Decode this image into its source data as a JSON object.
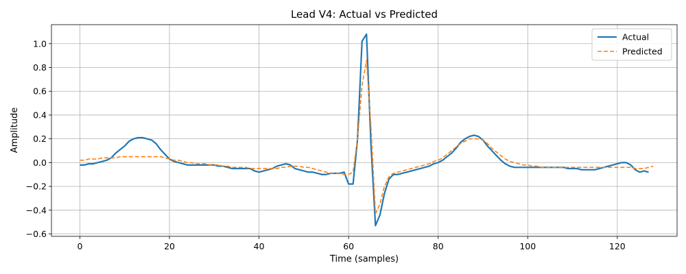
{
  "chart_data": {
    "type": "line",
    "title": "Lead V4: Actual vs Predicted",
    "xlabel": "Time (samples)",
    "ylabel": "Amplitude",
    "xlim": [
      -6.35,
      133.35
    ],
    "ylim": [
      -0.62,
      1.16
    ],
    "xticks": [
      0,
      20,
      40,
      60,
      80,
      100,
      120
    ],
    "yticks": [
      -0.6,
      -0.4,
      -0.2,
      0.0,
      0.2,
      0.4,
      0.6,
      0.8,
      1.0
    ],
    "xtick_labels": [
      "0",
      "20",
      "40",
      "60",
      "80",
      "100",
      "120"
    ],
    "ytick_labels": [
      "−0.6",
      "−0.4",
      "−0.2",
      "0.0",
      "0.2",
      "0.4",
      "0.6",
      "0.8",
      "1.0"
    ],
    "grid": true,
    "legend_position": "top-right",
    "series": [
      {
        "name": "Actual",
        "color": "#1f77b4",
        "style": "solid",
        "y": [
          -0.02,
          -0.02,
          -0.01,
          -0.01,
          0.0,
          0.01,
          0.02,
          0.04,
          0.08,
          0.11,
          0.14,
          0.18,
          0.2,
          0.21,
          0.21,
          0.2,
          0.19,
          0.16,
          0.11,
          0.07,
          0.03,
          0.01,
          0.0,
          -0.01,
          -0.02,
          -0.02,
          -0.02,
          -0.02,
          -0.02,
          -0.02,
          -0.02,
          -0.03,
          -0.03,
          -0.04,
          -0.05,
          -0.05,
          -0.05,
          -0.05,
          -0.05,
          -0.07,
          -0.08,
          -0.07,
          -0.06,
          -0.05,
          -0.03,
          -0.02,
          -0.01,
          -0.02,
          -0.05,
          -0.06,
          -0.07,
          -0.08,
          -0.08,
          -0.09,
          -0.1,
          -0.1,
          -0.09,
          -0.09,
          -0.09,
          -0.08,
          -0.18,
          -0.18,
          0.2,
          1.02,
          1.08,
          0.15,
          -0.53,
          -0.44,
          -0.26,
          -0.14,
          -0.1,
          -0.1,
          -0.09,
          -0.08,
          -0.07,
          -0.06,
          -0.05,
          -0.04,
          -0.03,
          -0.01,
          0.0,
          0.02,
          0.05,
          0.08,
          0.12,
          0.17,
          0.2,
          0.22,
          0.23,
          0.22,
          0.19,
          0.14,
          0.1,
          0.06,
          0.02,
          -0.01,
          -0.03,
          -0.04,
          -0.04,
          -0.04,
          -0.04,
          -0.04,
          -0.04,
          -0.04,
          -0.04,
          -0.04,
          -0.04,
          -0.04,
          -0.04,
          -0.05,
          -0.05,
          -0.05,
          -0.06,
          -0.06,
          -0.06,
          -0.06,
          -0.05,
          -0.04,
          -0.03,
          -0.02,
          -0.01,
          0.0,
          0.0,
          -0.02,
          -0.06,
          -0.08,
          -0.07,
          -0.08
        ]
      },
      {
        "name": "Predicted",
        "color": "#ff7f0e",
        "style": "dashed",
        "y": [
          0.02,
          0.02,
          0.03,
          0.03,
          0.03,
          0.04,
          0.04,
          0.04,
          0.04,
          0.05,
          0.05,
          0.05,
          0.05,
          0.05,
          0.05,
          0.05,
          0.05,
          0.05,
          0.05,
          0.04,
          0.03,
          0.02,
          0.02,
          0.01,
          0.0,
          0.0,
          -0.01,
          -0.01,
          -0.01,
          -0.02,
          -0.02,
          -0.02,
          -0.03,
          -0.03,
          -0.04,
          -0.04,
          -0.04,
          -0.04,
          -0.05,
          -0.05,
          -0.05,
          -0.05,
          -0.05,
          -0.05,
          -0.05,
          -0.04,
          -0.04,
          -0.03,
          -0.03,
          -0.03,
          -0.04,
          -0.04,
          -0.05,
          -0.06,
          -0.07,
          -0.08,
          -0.09,
          -0.09,
          -0.09,
          -0.1,
          -0.1,
          -0.08,
          0.2,
          0.65,
          0.86,
          0.3,
          -0.43,
          -0.35,
          -0.2,
          -0.12,
          -0.09,
          -0.08,
          -0.07,
          -0.06,
          -0.05,
          -0.04,
          -0.03,
          -0.02,
          -0.01,
          0.01,
          0.02,
          0.04,
          0.07,
          0.1,
          0.13,
          0.16,
          0.18,
          0.2,
          0.2,
          0.2,
          0.19,
          0.16,
          0.12,
          0.09,
          0.06,
          0.03,
          0.01,
          0.0,
          -0.01,
          -0.02,
          -0.02,
          -0.03,
          -0.03,
          -0.04,
          -0.04,
          -0.04,
          -0.04,
          -0.04,
          -0.04,
          -0.04,
          -0.04,
          -0.04,
          -0.04,
          -0.04,
          -0.04,
          -0.04,
          -0.04,
          -0.04,
          -0.04,
          -0.04,
          -0.04,
          -0.04,
          -0.04,
          -0.04,
          -0.05,
          -0.05,
          -0.05,
          -0.04,
          -0.03
        ]
      }
    ]
  }
}
